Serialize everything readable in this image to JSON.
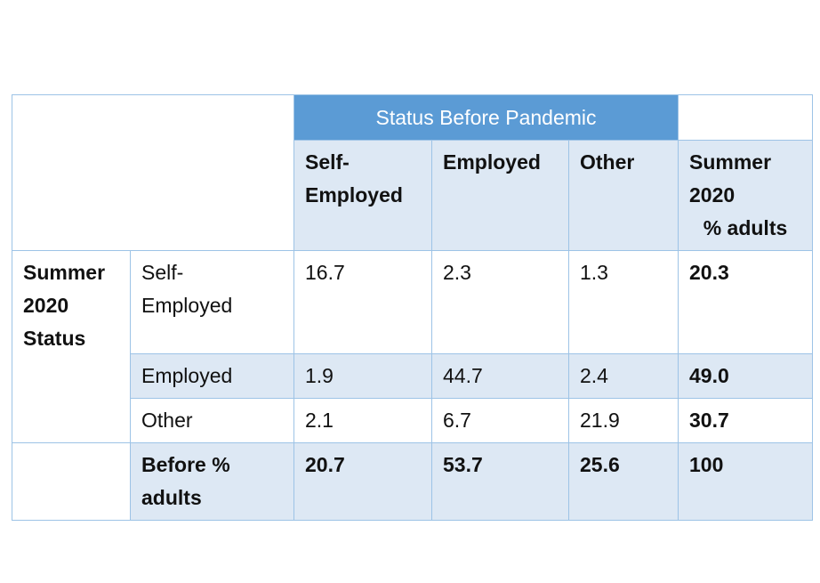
{
  "table": {
    "banner": "Status Before Pandemic",
    "row_group_label": [
      "Summer",
      "2020",
      "Status"
    ],
    "col_headers": {
      "self_employed": [
        "Self-",
        "Employed"
      ],
      "employed": "Employed",
      "other": "Other",
      "summer_pct": [
        "Summer",
        "2020",
        "% adults"
      ]
    },
    "rows": [
      {
        "label": [
          "Self-",
          "Employed"
        ],
        "self_employed": "16.7",
        "employed": "2.3",
        "other": "1.3",
        "total": "20.3"
      },
      {
        "label": [
          "Employed"
        ],
        "self_employed": "1.9",
        "employed": "44.7",
        "other": "2.4",
        "total": "49.0"
      },
      {
        "label": [
          "Other"
        ],
        "self_employed": "2.1",
        "employed": "6.7",
        "other": "21.9",
        "total": "30.7"
      }
    ],
    "footer": {
      "label": [
        "Before %",
        "adults"
      ],
      "self_employed": "20.7",
      "employed": "53.7",
      "other": "25.6",
      "total": "100"
    }
  }
}
